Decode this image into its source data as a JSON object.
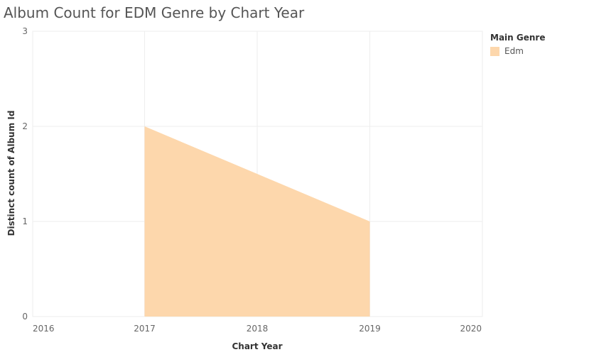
{
  "title": "Album Count for EDM Genre by Chart Year",
  "legend": {
    "title": "Main Genre",
    "items": [
      {
        "label": "Edm",
        "color": "#fdd7ac"
      }
    ]
  },
  "chart_data": {
    "type": "area",
    "title": "Album Count for EDM Genre by Chart Year",
    "xlabel": "Chart Year",
    "ylabel": "Distinct count of Album Id",
    "x_ticks": [
      "2016",
      "2017",
      "2018",
      "2019",
      "2020"
    ],
    "y_ticks": [
      "0",
      "1",
      "2",
      "3"
    ],
    "xlim": [
      2016,
      2020
    ],
    "ylim": [
      0,
      3
    ],
    "grid": true,
    "legend_position": "right",
    "series": [
      {
        "name": "Edm",
        "color": "#fdd7ac",
        "x": [
          2017,
          2018,
          2019
        ],
        "y": [
          2,
          1.5,
          1
        ]
      }
    ]
  }
}
